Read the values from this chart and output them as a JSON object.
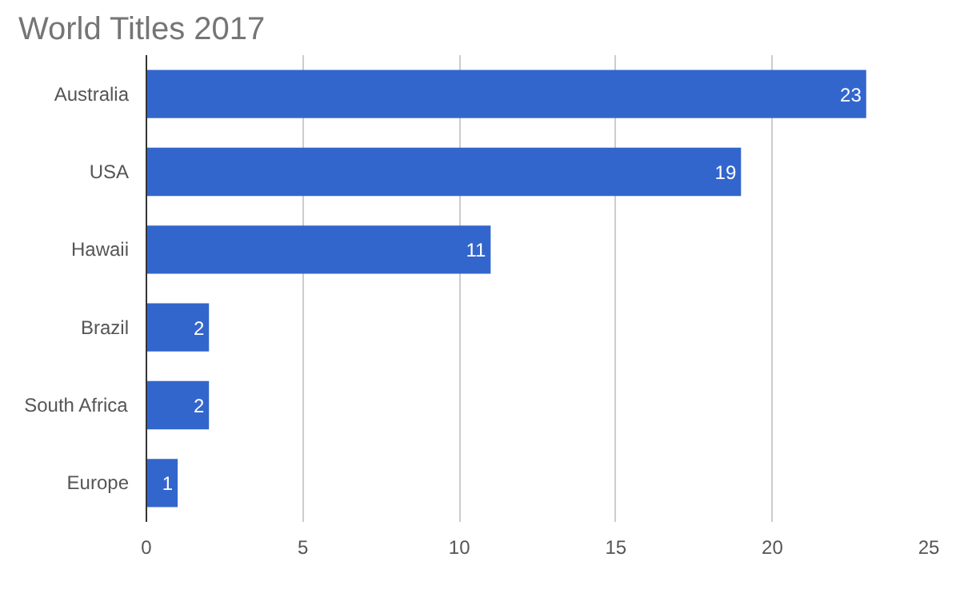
{
  "chart_data": {
    "type": "bar",
    "orientation": "horizontal",
    "title": "World Titles 2017",
    "categories": [
      "Australia",
      "USA",
      "Hawaii",
      "Brazil",
      "South Africa",
      "Europe"
    ],
    "values": [
      23,
      19,
      11,
      2,
      2,
      1
    ],
    "color": "#3366cc",
    "xlim": [
      0,
      25
    ],
    "xticks": [
      0,
      5,
      10,
      15,
      20,
      25
    ],
    "grid": "x",
    "data_labels": true
  }
}
